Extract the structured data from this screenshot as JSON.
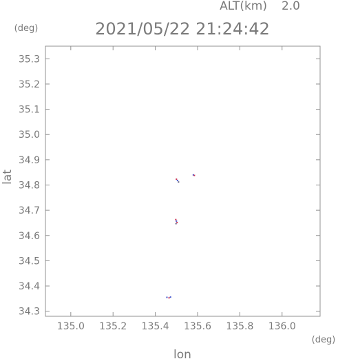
{
  "header": {
    "alt_label": "ALT(km)",
    "alt_value": "2.0",
    "timestamp": "2021/05/22 21:24:42"
  },
  "chart_data": {
    "type": "scatter",
    "title": "2021/05/22 21:24:42",
    "xlabel": "lon",
    "ylabel": "lat",
    "x_unit": "(deg)",
    "y_unit": "(deg)",
    "xlim": [
      134.88,
      136.18
    ],
    "ylim": [
      34.28,
      35.35
    ],
    "x_ticks": [
      135.0,
      135.2,
      135.4,
      135.6,
      135.8,
      136.0
    ],
    "x_tick_labels": [
      "135.0",
      "135.2",
      "135.4",
      "135.6",
      "135.8",
      "136.0"
    ],
    "y_ticks": [
      34.3,
      34.4,
      34.5,
      34.6,
      34.7,
      34.8,
      34.9,
      35.0,
      35.1,
      35.2,
      35.3
    ],
    "y_tick_labels": [
      "34.3",
      "34.4",
      "34.5",
      "34.6",
      "34.7",
      "34.8",
      "34.9",
      "35.0",
      "35.1",
      "35.2",
      "35.3"
    ],
    "grid": false,
    "points": [
      {
        "lon": 135.5,
        "lat": 34.823,
        "color": "#cc3355"
      },
      {
        "lon": 135.505,
        "lat": 34.818,
        "color": "#4455cc"
      },
      {
        "lon": 135.51,
        "lat": 34.812,
        "color": "#6a6a8a"
      },
      {
        "lon": 135.58,
        "lat": 34.84,
        "color": "#4455cc"
      },
      {
        "lon": 135.585,
        "lat": 34.838,
        "color": "#cc3355"
      },
      {
        "lon": 135.497,
        "lat": 34.663,
        "color": "#cc3355"
      },
      {
        "lon": 135.5,
        "lat": 34.657,
        "color": "#4455cc"
      },
      {
        "lon": 135.503,
        "lat": 34.651,
        "color": "#cc3355"
      },
      {
        "lon": 135.498,
        "lat": 34.647,
        "color": "#6a6a8a"
      },
      {
        "lon": 135.455,
        "lat": 34.355,
        "color": "#4455cc"
      },
      {
        "lon": 135.465,
        "lat": 34.353,
        "color": "#cc3355"
      },
      {
        "lon": 135.472,
        "lat": 34.356,
        "color": "#4455cc"
      }
    ]
  }
}
